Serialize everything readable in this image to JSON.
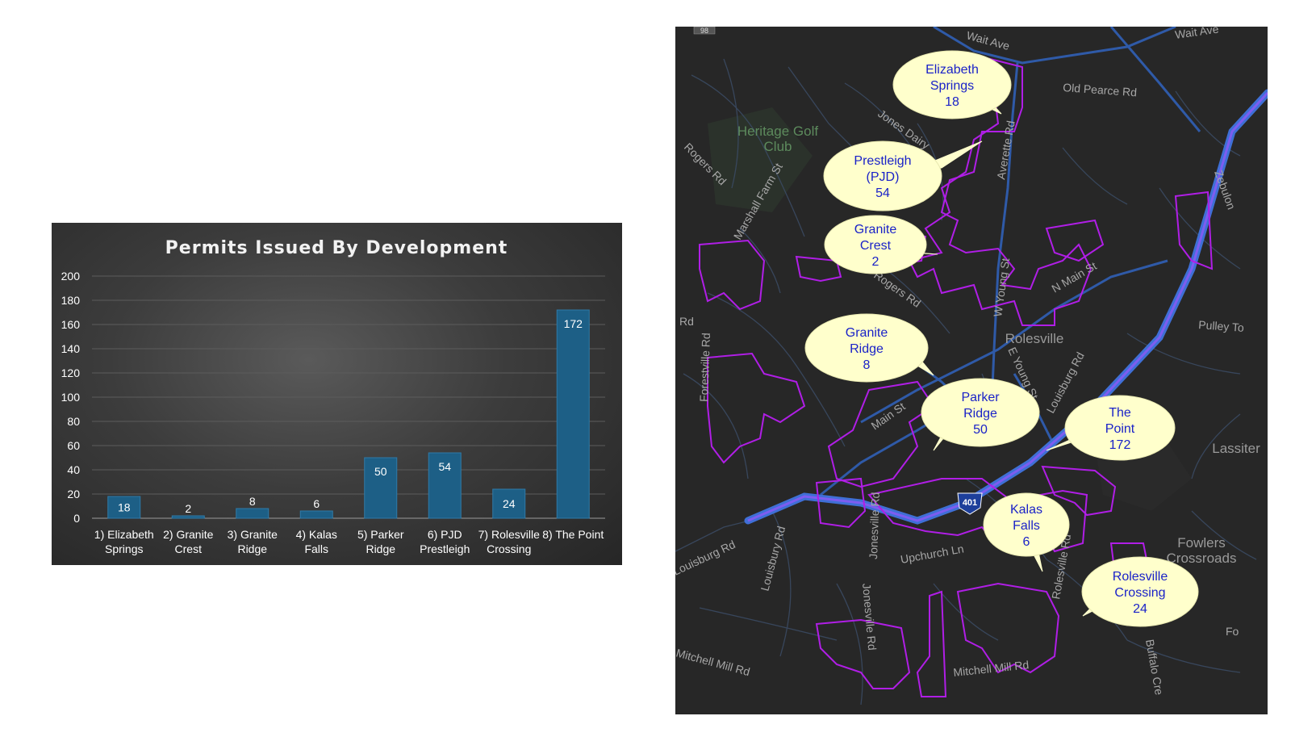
{
  "chart_data": {
    "type": "bar",
    "title": "Permits Issued By Development",
    "categories": [
      [
        "1) Elizabeth",
        "Springs"
      ],
      [
        "2) Granite",
        "Crest"
      ],
      [
        "3) Granite",
        "Ridge"
      ],
      [
        "4) Kalas",
        "Falls"
      ],
      [
        "5) Parker",
        "Ridge"
      ],
      [
        "6) PJD",
        "Prestleigh"
      ],
      [
        "7) Rolesville",
        "Crossing"
      ],
      [
        "8) The Point"
      ]
    ],
    "values": [
      18,
      2,
      8,
      6,
      50,
      54,
      24,
      172
    ],
    "data_labels": [
      "18",
      "2",
      "8",
      "6",
      "50",
      "54",
      "24",
      "172"
    ],
    "ylim": [
      0,
      200
    ],
    "yticks": [
      "0",
      "20",
      "40",
      "60",
      "80",
      "100",
      "120",
      "140",
      "160",
      "180",
      "200"
    ],
    "grid": true,
    "bar_color": "#1d5f86",
    "background": "dark"
  },
  "map": {
    "callouts": [
      {
        "lines": [
          "Elizabeth",
          "Springs",
          "18"
        ]
      },
      {
        "lines": [
          "Prestleigh",
          "(PJD)",
          "54"
        ]
      },
      {
        "lines": [
          "Granite",
          "Crest",
          "2"
        ]
      },
      {
        "lines": [
          "Granite",
          "Ridge",
          "8"
        ]
      },
      {
        "lines": [
          "Parker",
          "Ridge",
          "50"
        ]
      },
      {
        "lines": [
          "The",
          "Point",
          "172"
        ]
      },
      {
        "lines": [
          "Kalas",
          "Falls",
          "6"
        ]
      },
      {
        "lines": [
          "Rolesville",
          "Crossing",
          "24"
        ]
      }
    ],
    "places": [
      {
        "lines": [
          "Heritage Golf",
          "Club"
        ]
      },
      {
        "lines": [
          "Rolesville"
        ]
      },
      {
        "lines": [
          "Lassiter"
        ]
      },
      {
        "lines": [
          "Fowlers",
          "Crossroads"
        ]
      }
    ],
    "roads": [
      "Wait Ave",
      "Wait Ave",
      "Old Pearce Rd",
      "Jones Dairy",
      "Rogers Rd",
      "Marshall Farm St",
      "Averette Rd",
      "W Young St",
      "Rogers Rd",
      "N Main St",
      "Pulley To",
      "Zebulon",
      "Louisburg Rd",
      "E Young St",
      "Forestville Rd",
      "Rd",
      "Main St",
      "Louisburg Rd",
      "Louisbury Rd",
      "Jonesville Rd",
      "Upchurch Ln",
      "Jonesville Rd",
      "Rolesville Rd",
      "Mitchell Mill Rd",
      "Mitchell Mill Rd",
      "Buffalo Cre",
      "Fo",
      "401",
      "98"
    ],
    "colors": {
      "boundary": "#b01ee6",
      "highway": "#3f6fd6",
      "callout_fill": "#ffffcc",
      "callout_text": "#1a22c8"
    }
  }
}
